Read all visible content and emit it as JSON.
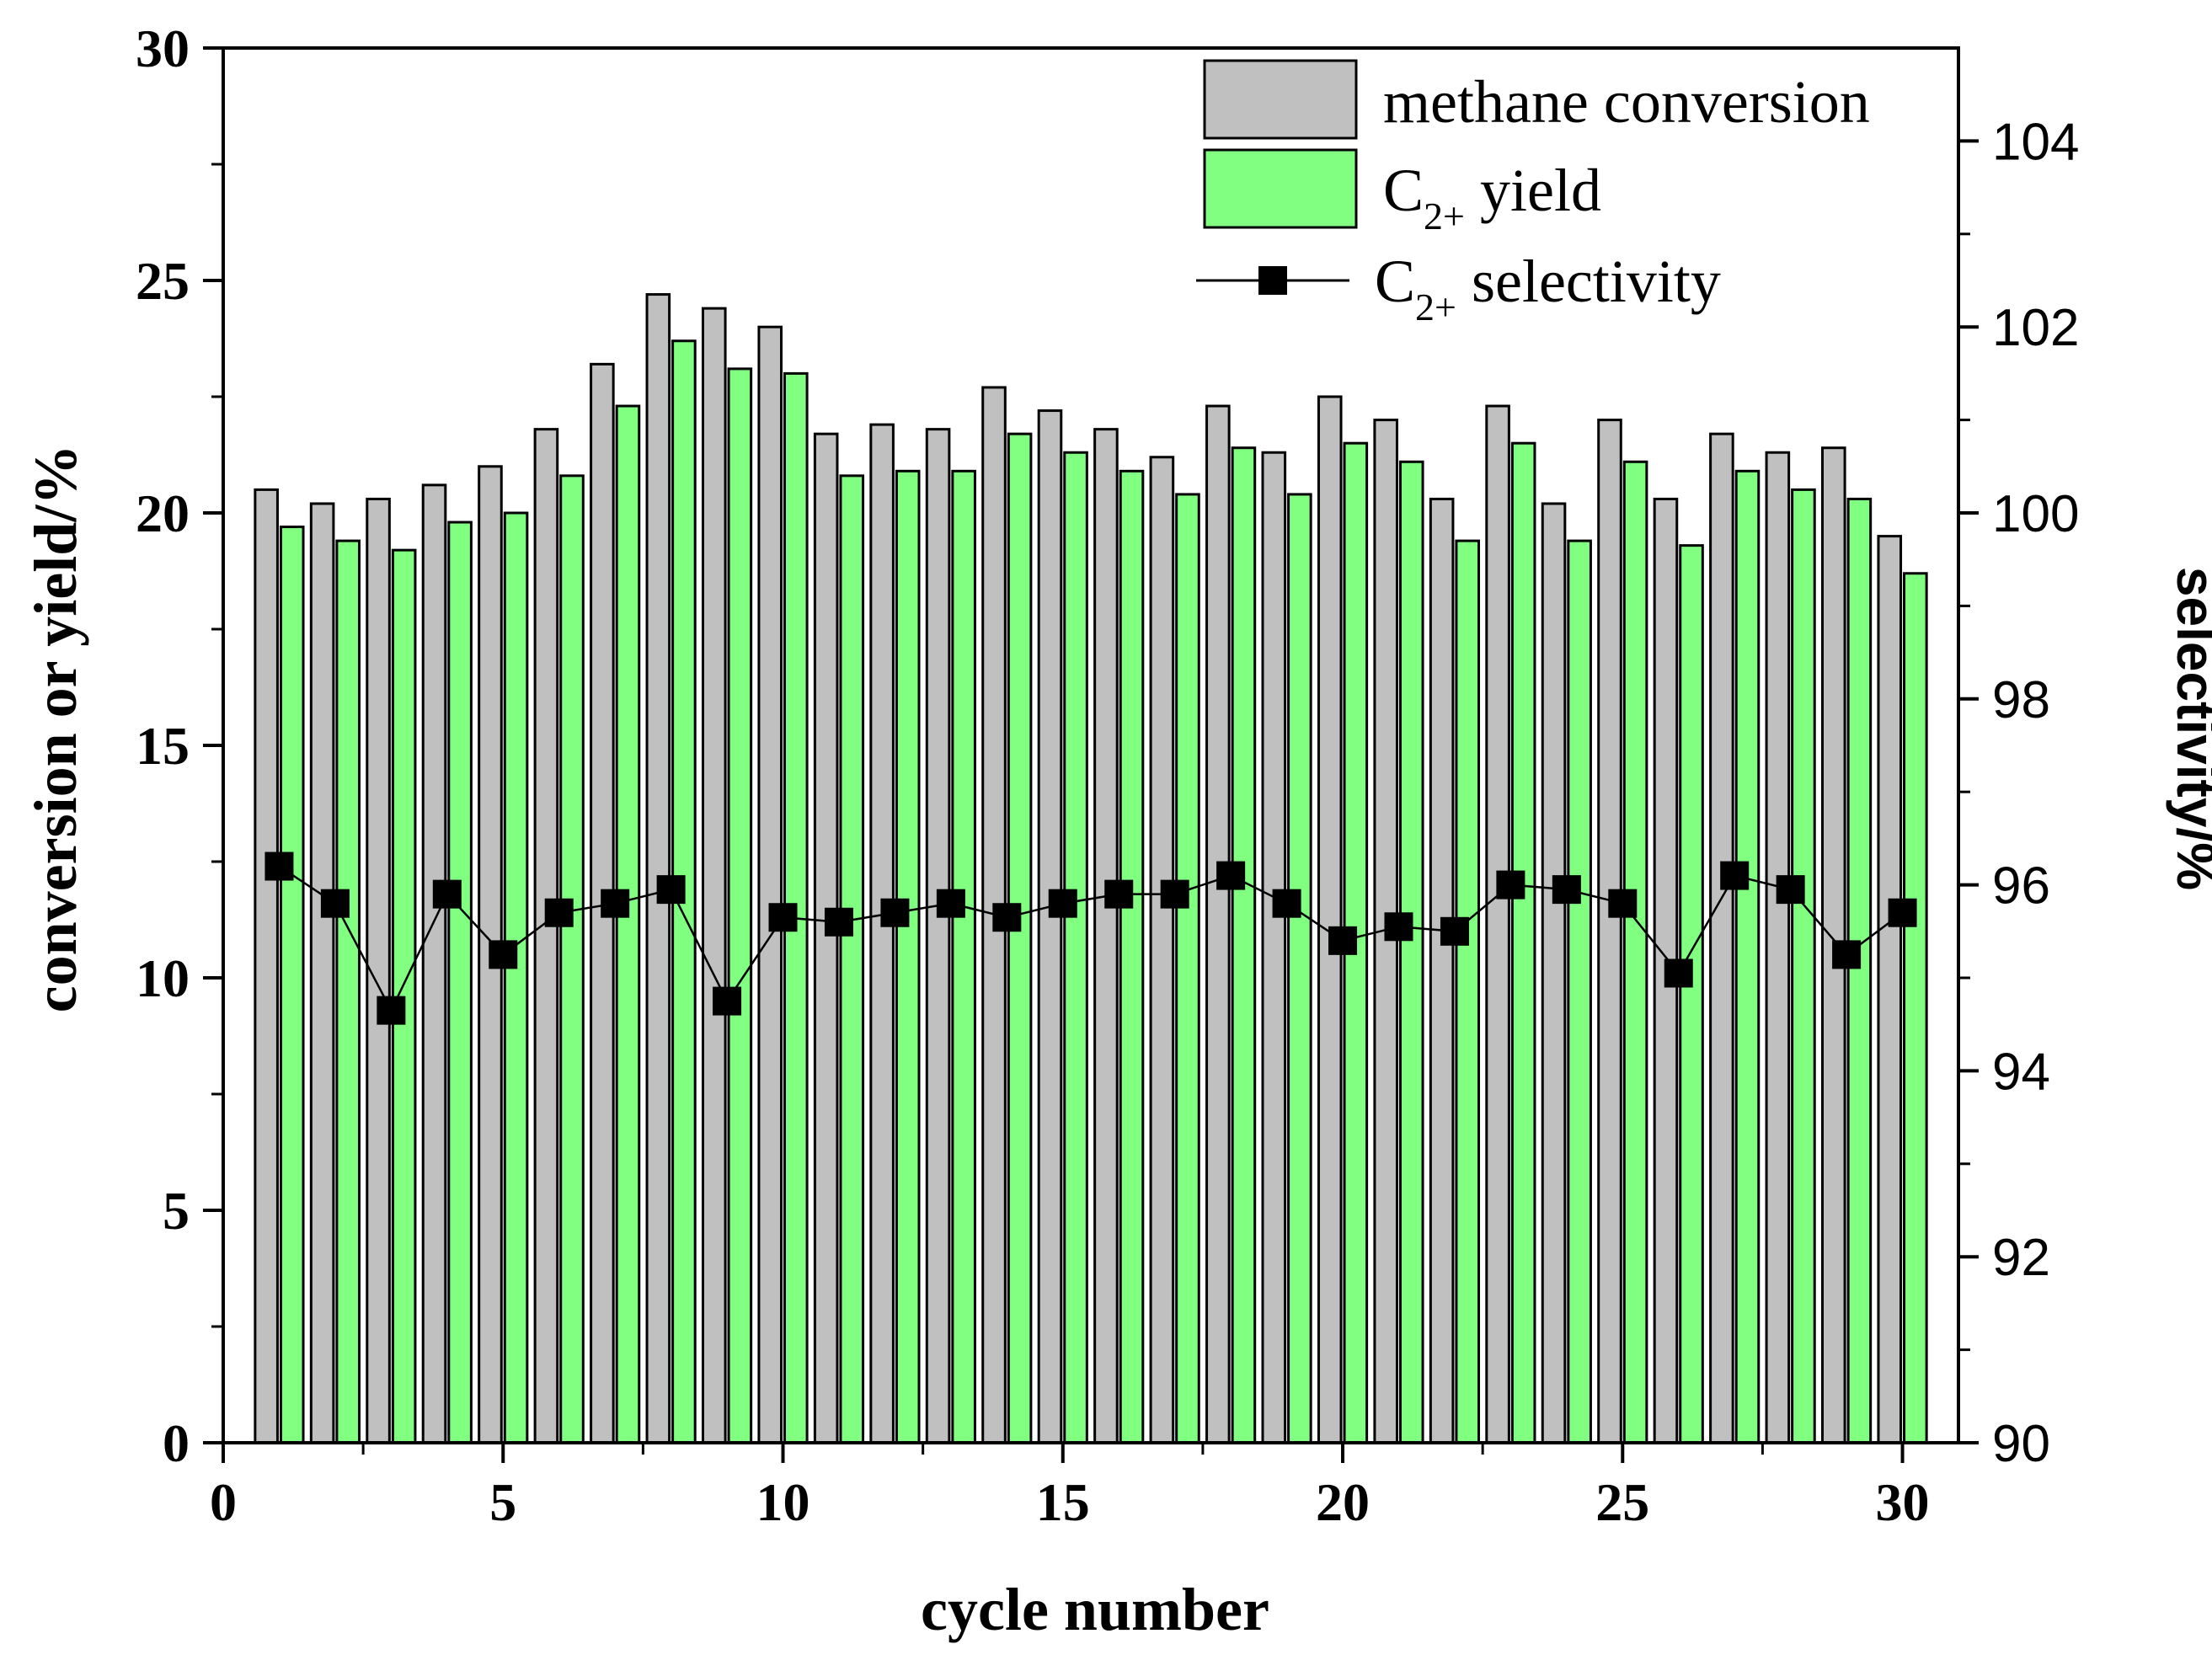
{
  "chart_data": {
    "type": "bar",
    "xlabel": "cycle number",
    "ylabel_left": "conversion or yield/%",
    "ylabel_right": "selectivity/%",
    "xlim": [
      0,
      31
    ],
    "ylim_left": [
      0,
      30
    ],
    "ylim_right": [
      90,
      105
    ],
    "x_ticks": [
      0,
      5,
      10,
      15,
      20,
      25,
      30
    ],
    "y_left_ticks": [
      0,
      5,
      10,
      15,
      20,
      25,
      30
    ],
    "y_right_ticks": [
      90,
      92,
      94,
      96,
      98,
      100,
      102,
      104
    ],
    "grid": false,
    "legend_position": "top-right",
    "categories": [
      1,
      2,
      3,
      4,
      5,
      6,
      7,
      8,
      9,
      10,
      11,
      12,
      13,
      14,
      15,
      16,
      17,
      18,
      19,
      20,
      21,
      22,
      23,
      24,
      25,
      26,
      27,
      28,
      29,
      30
    ],
    "series": [
      {
        "name": "methane conversion",
        "kind": "bar",
        "axis": "left",
        "color": "#c0c0c0",
        "values": [
          20.5,
          20.2,
          20.3,
          20.6,
          21.0,
          21.8,
          23.2,
          24.7,
          24.4,
          24.0,
          21.7,
          21.9,
          21.8,
          22.7,
          22.2,
          21.8,
          21.2,
          22.3,
          21.3,
          22.5,
          22.0,
          20.3,
          22.3,
          20.2,
          22.0,
          20.3,
          21.7,
          21.3,
          21.4,
          19.5
        ]
      },
      {
        "name": "C2+ yield",
        "legend_main": "C",
        "legend_sub": "2+",
        "legend_rest": " yield",
        "kind": "bar",
        "axis": "left",
        "color": "#80ff80",
        "values": [
          19.7,
          19.4,
          19.2,
          19.8,
          20.0,
          20.8,
          22.3,
          23.7,
          23.1,
          23.0,
          20.8,
          20.9,
          20.9,
          21.7,
          21.3,
          20.9,
          20.4,
          21.4,
          20.4,
          21.5,
          21.1,
          19.4,
          21.5,
          19.4,
          21.1,
          19.3,
          20.9,
          20.5,
          20.3,
          18.7
        ]
      },
      {
        "name": "C2+ selectivity",
        "legend_main": "C",
        "legend_sub": "2+",
        "legend_rest": " selectivity",
        "kind": "line",
        "axis": "right",
        "color": "#000000",
        "values": [
          96.2,
          95.8,
          94.65,
          95.9,
          95.25,
          95.7,
          95.8,
          95.95,
          94.75,
          95.65,
          95.6,
          95.7,
          95.8,
          95.65,
          95.8,
          95.9,
          95.9,
          96.1,
          95.8,
          95.4,
          95.55,
          95.5,
          96.0,
          95.95,
          95.8,
          95.05,
          96.1,
          95.95,
          95.25,
          95.7
        ]
      }
    ]
  }
}
